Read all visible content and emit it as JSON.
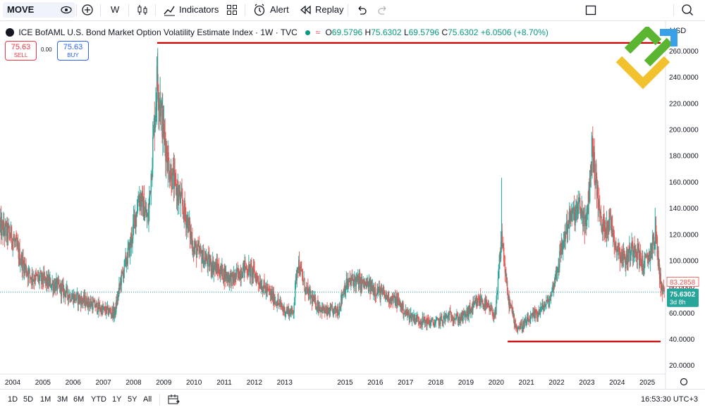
{
  "toolbar": {
    "symbol": "MOVE",
    "interval": "W",
    "indicators_label": "Indicators",
    "alert_label": "Alert",
    "replay_label": "Replay"
  },
  "legend": {
    "title": "ICE BofAML U.S. Bond Market Option Volatility Estimate Index · 1W · TVC",
    "open": "69.5796",
    "high": "75.6302",
    "low": "69.5796",
    "close": "75.6302",
    "change": "+6.0506 (+8.70%)",
    "prefix_o": "O",
    "prefix_h": "H",
    "prefix_l": "L",
    "prefix_c": "C"
  },
  "trade": {
    "sell_price": "75.63",
    "sell_label": "SELL",
    "spread": "0.00",
    "buy_price": "75.63",
    "buy_label": "BUY"
  },
  "currency_label": "USD",
  "bottom": {
    "ranges": [
      "1D",
      "5D",
      "1M",
      "3M",
      "6M",
      "YTD",
      "1Y",
      "5Y",
      "All"
    ],
    "clock": "16:53:30 UTC+3"
  },
  "colors": {
    "up": "#26a69a",
    "down": "#ef5350",
    "annotation": "#cc0000",
    "last_price_bg": "#26a69a"
  },
  "chart_data": {
    "type": "candlestick",
    "symbol": "MOVE",
    "timeframe": "1W",
    "x_range": [
      2003.6,
      2025.6
    ],
    "ylim": [
      12,
      272
    ],
    "y_ticks": [
      20,
      40,
      60,
      80,
      100,
      120,
      140,
      160,
      180,
      200,
      220,
      240,
      260
    ],
    "y_tick_labels": [
      "20.0000",
      "40.0000",
      "60.0000",
      "80.0000",
      "100.0000",
      "120.0000",
      "140.0000",
      "160.0000",
      "180.0000",
      "200.0000",
      "220.0000",
      "240.0000",
      "260.0000"
    ],
    "x_ticks": [
      2004,
      2005,
      2006,
      2007,
      2008,
      2009,
      2010,
      2011,
      2012,
      2013,
      2015,
      2016,
      2017,
      2018,
      2019,
      2020,
      2021,
      2022,
      2023,
      2024,
      2025
    ],
    "x_tick_labels": [
      "2004",
      "2005",
      "2006",
      "2007",
      "2008",
      "2009",
      "2010",
      "2011",
      "2012",
      "2013",
      "2015",
      "2016",
      "2017",
      "2018",
      "2019",
      "2020",
      "2021",
      "2022",
      "2023",
      "2024",
      "2025"
    ],
    "grid": false,
    "series": [
      {
        "values": [
          [
            2003.6,
            125
          ],
          [
            2004.0,
            118
          ],
          [
            2004.3,
            100
          ],
          [
            2004.6,
            88
          ],
          [
            2005.0,
            85
          ],
          [
            2005.5,
            80
          ],
          [
            2006.0,
            72
          ],
          [
            2006.5,
            68
          ],
          [
            2007.0,
            62
          ],
          [
            2007.4,
            60
          ],
          [
            2007.6,
            85
          ],
          [
            2007.9,
            110
          ],
          [
            2008.2,
            150
          ],
          [
            2008.5,
            130
          ],
          [
            2008.8,
            240
          ],
          [
            2009.0,
            200
          ],
          [
            2009.2,
            170
          ],
          [
            2009.5,
            150
          ],
          [
            2009.8,
            130
          ],
          [
            2010.0,
            110
          ],
          [
            2010.4,
            100
          ],
          [
            2010.7,
            95
          ],
          [
            2011.0,
            90
          ],
          [
            2011.3,
            85
          ],
          [
            2011.7,
            95
          ],
          [
            2012.0,
            90
          ],
          [
            2012.3,
            80
          ],
          [
            2012.7,
            70
          ],
          [
            2013.0,
            62
          ],
          [
            2013.3,
            60
          ],
          [
            2013.45,
            100
          ],
          [
            2013.7,
            78
          ],
          [
            2014.0,
            68
          ],
          [
            2014.4,
            60
          ],
          [
            2014.8,
            62
          ],
          [
            2015.0,
            80
          ],
          [
            2015.3,
            85
          ],
          [
            2015.6,
            82
          ],
          [
            2016.0,
            78
          ],
          [
            2016.4,
            72
          ],
          [
            2016.8,
            68
          ],
          [
            2017.0,
            60
          ],
          [
            2017.5,
            54
          ],
          [
            2018.0,
            52
          ],
          [
            2018.5,
            58
          ],
          [
            2018.8,
            55
          ],
          [
            2019.0,
            58
          ],
          [
            2019.5,
            70
          ],
          [
            2019.8,
            62
          ],
          [
            2020.0,
            58
          ],
          [
            2020.2,
            120
          ],
          [
            2020.4,
            72
          ],
          [
            2020.7,
            48
          ],
          [
            2021.0,
            52
          ],
          [
            2021.4,
            60
          ],
          [
            2021.8,
            70
          ],
          [
            2022.0,
            90
          ],
          [
            2022.4,
            130
          ],
          [
            2022.8,
            140
          ],
          [
            2023.0,
            125
          ],
          [
            2023.2,
            185
          ],
          [
            2023.5,
            125
          ],
          [
            2023.8,
            130
          ],
          [
            2024.0,
            110
          ],
          [
            2024.3,
            100
          ],
          [
            2024.6,
            112
          ],
          [
            2024.9,
            95
          ],
          [
            2025.1,
            105
          ],
          [
            2025.3,
            120
          ],
          [
            2025.45,
            84
          ],
          [
            2025.55,
            75.63
          ]
        ]
      }
    ],
    "last_close": 75.6302,
    "last_close_label": "75.6302",
    "last_close_countdown": "3d 8h",
    "secondary_price_label": "83.2858",
    "secondary_price": 83.2858,
    "annotations": [
      {
        "type": "horizontal-line",
        "value": 266,
        "x_from": 2008.8,
        "x_to": 2025.6
      },
      {
        "type": "horizontal-line",
        "value": 38,
        "x_from": 2020.4,
        "x_to": 2025.6
      }
    ]
  }
}
